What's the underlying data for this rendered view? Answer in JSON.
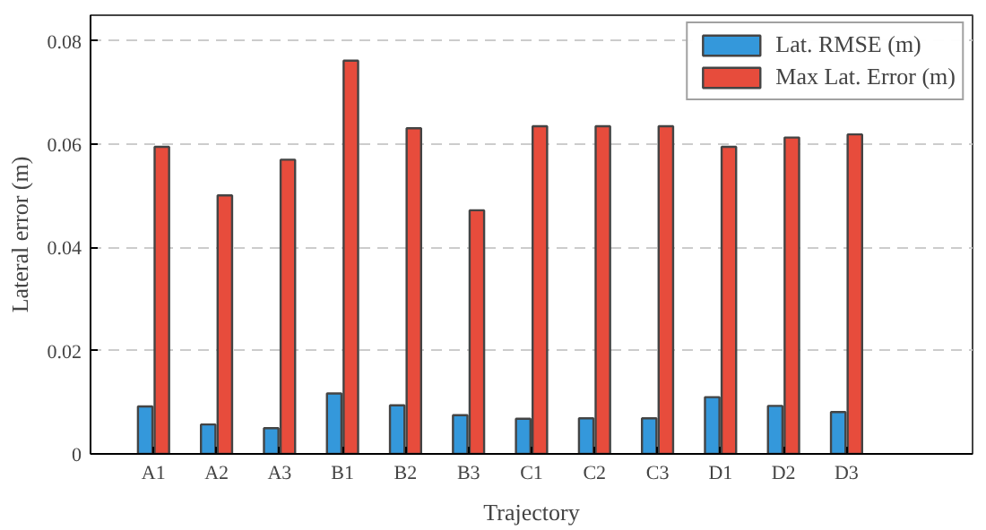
{
  "chart_data": {
    "type": "bar",
    "xlabel": "Trajectory",
    "ylabel": "Lateral error (m)",
    "categories": [
      "A1",
      "A2",
      "A3",
      "B1",
      "B2",
      "B3",
      "C1",
      "C2",
      "C3",
      "D1",
      "D2",
      "D3"
    ],
    "series": [
      {
        "name": "Lat. RMSE (m)",
        "color": "#3498db",
        "values": [
          0.0092,
          0.0057,
          0.005,
          0.0117,
          0.0094,
          0.0075,
          0.0068,
          0.0069,
          0.0069,
          0.011,
          0.0093,
          0.0081
        ]
      },
      {
        "name": "Max Lat. Error (m)",
        "color": "#e74c3c",
        "values": [
          0.0595,
          0.0501,
          0.057,
          0.0762,
          0.0631,
          0.0472,
          0.0635,
          0.0635,
          0.0635,
          0.0595,
          0.0613,
          0.0619
        ]
      }
    ],
    "ylim": [
      0,
      0.085
    ],
    "yticks": [
      0,
      0.02,
      0.04,
      0.06,
      0.08
    ],
    "grid": "y",
    "legend": "top right"
  }
}
